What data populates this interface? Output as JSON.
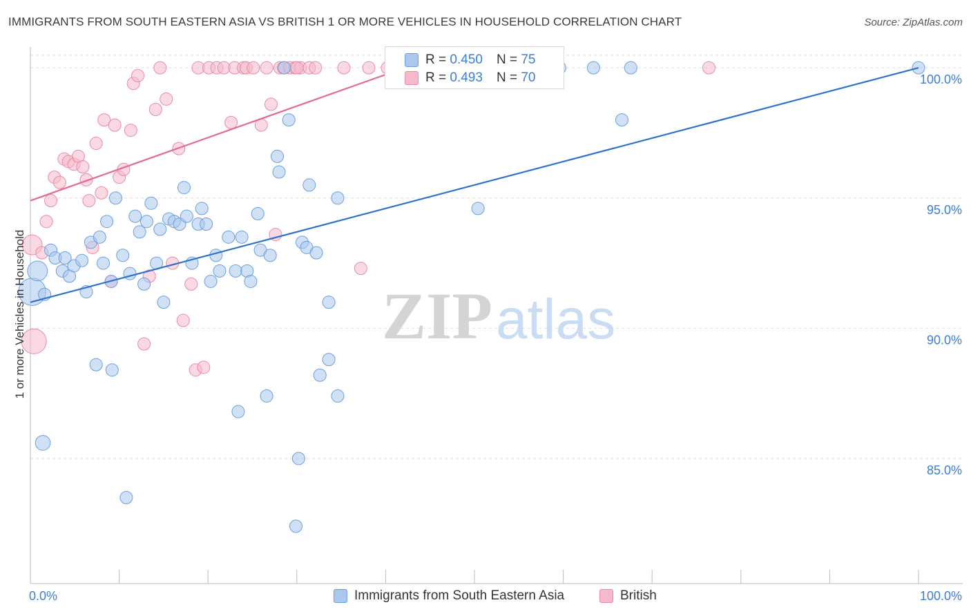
{
  "header": {
    "title": "IMMIGRANTS FROM SOUTH EASTERN ASIA VS BRITISH 1 OR MORE VEHICLES IN HOUSEHOLD CORRELATION CHART",
    "source": "Source: ZipAtlas.com"
  },
  "watermark": {
    "zip": "ZIP",
    "atlas": "atlas"
  },
  "colors": {
    "blue_fill": "#aac8ee",
    "blue_stroke": "#6a9fdc",
    "blue_line": "#2f72c9",
    "pink_fill": "#f5b9cb",
    "pink_stroke": "#e88aa8",
    "pink_line": "#e06a93",
    "tick_label": "#3b7dd8",
    "grid": "#dddddd"
  },
  "stats": {
    "blue": {
      "r_label": "R =",
      "r_value": "0.450",
      "n_label": "N =",
      "n_value": "75"
    },
    "pink": {
      "r_label": "R =",
      "r_value": "0.493",
      "n_label": "N =",
      "n_value": "70"
    }
  },
  "legend": {
    "blue_label": "Immigrants from South Eastern Asia",
    "pink_label": "British"
  },
  "chart_data": {
    "type": "scatter",
    "title": "IMMIGRANTS FROM SOUTH EASTERN ASIA VS BRITISH 1 OR MORE VEHICLES IN HOUSEHOLD CORRELATION CHART",
    "xlabel": "",
    "ylabel": "1 or more Vehicles in Household",
    "xlim": [
      0,
      100
    ],
    "ylim": [
      80.2,
      100.8
    ],
    "x_tick_labels": [
      "0.0%",
      "100.0%"
    ],
    "y_ticks": [
      85.0,
      90.0,
      95.0,
      100.0
    ],
    "y_tick_labels": [
      "85.0%",
      "90.0%",
      "95.0%",
      "100.0%"
    ],
    "grid": true,
    "series": [
      {
        "name": "Immigrants from South Eastern Asia",
        "color": "blue",
        "trend": {
          "x": [
            0,
            100
          ],
          "y": [
            91.0,
            100.0
          ]
        },
        "points": [
          [
            0.2,
            91.4,
            22
          ],
          [
            0.8,
            92.2,
            16
          ],
          [
            1.6,
            91.3,
            10
          ],
          [
            2.3,
            93.0,
            10
          ],
          [
            2.8,
            92.7,
            10
          ],
          [
            3.6,
            92.2,
            10
          ],
          [
            3.9,
            92.7,
            10
          ],
          [
            4.4,
            92.0,
            10
          ],
          [
            4.9,
            92.4,
            10
          ],
          [
            5.8,
            92.6,
            10
          ],
          [
            6.3,
            91.4,
            10
          ],
          [
            6.8,
            93.3,
            10
          ],
          [
            7.4,
            88.6,
            10
          ],
          [
            7.8,
            93.5,
            10
          ],
          [
            9.2,
            88.4,
            10
          ],
          [
            8.2,
            92.5,
            10
          ],
          [
            8.6,
            94.1,
            10
          ],
          [
            9.1,
            91.8,
            10
          ],
          [
            9.6,
            95.0,
            10
          ],
          [
            10.4,
            92.8,
            10
          ],
          [
            10.8,
            83.5,
            10
          ],
          [
            11.2,
            92.1,
            10
          ],
          [
            11.8,
            94.3,
            10
          ],
          [
            12.3,
            93.7,
            10
          ],
          [
            12.8,
            91.7,
            10
          ],
          [
            13.1,
            94.1,
            10
          ],
          [
            13.6,
            94.8,
            10
          ],
          [
            14.2,
            92.5,
            10
          ],
          [
            14.6,
            93.8,
            10
          ],
          [
            15.0,
            91.0,
            10
          ],
          [
            15.6,
            94.2,
            10
          ],
          [
            16.2,
            94.1,
            10
          ],
          [
            16.8,
            94.0,
            10
          ],
          [
            17.3,
            95.4,
            10
          ],
          [
            17.6,
            94.3,
            10
          ],
          [
            18.2,
            92.5,
            10
          ],
          [
            18.9,
            94.0,
            10
          ],
          [
            19.3,
            94.6,
            10
          ],
          [
            19.8,
            94.0,
            10
          ],
          [
            20.3,
            91.8,
            10
          ],
          [
            20.9,
            92.8,
            10
          ],
          [
            21.3,
            92.2,
            10
          ],
          [
            22.3,
            93.5,
            10
          ],
          [
            23.1,
            92.2,
            10
          ],
          [
            23.4,
            86.8,
            10
          ],
          [
            23.8,
            93.5,
            10
          ],
          [
            24.4,
            92.2,
            10
          ],
          [
            24.8,
            91.8,
            10
          ],
          [
            25.6,
            94.4,
            10
          ],
          [
            25.9,
            93.0,
            10
          ],
          [
            26.6,
            87.4,
            10
          ],
          [
            27.0,
            92.8,
            10
          ],
          [
            27.8,
            96.6,
            10
          ],
          [
            28.0,
            96.0,
            10
          ],
          [
            28.6,
            100.0,
            10
          ],
          [
            29.1,
            98.0,
            10
          ],
          [
            29.9,
            82.4,
            10
          ],
          [
            30.2,
            85.0,
            10
          ],
          [
            30.6,
            93.3,
            10
          ],
          [
            31.1,
            93.1,
            10
          ],
          [
            31.4,
            95.5,
            10
          ],
          [
            32.2,
            92.9,
            10
          ],
          [
            32.6,
            88.2,
            10
          ],
          [
            33.6,
            91.0,
            10
          ],
          [
            33.6,
            88.8,
            10
          ],
          [
            34.6,
            87.4,
            10
          ],
          [
            34.6,
            95.0,
            10
          ],
          [
            42.5,
            100.0,
            10
          ],
          [
            50.4,
            94.6,
            10
          ],
          [
            59.6,
            100.0,
            10
          ],
          [
            63.4,
            100.0,
            10
          ],
          [
            66.6,
            98.0,
            10
          ],
          [
            67.6,
            100.0,
            10
          ],
          [
            100.0,
            100.0,
            10
          ],
          [
            1.4,
            85.6,
            12
          ]
        ]
      },
      {
        "name": "British",
        "color": "pink",
        "trend": {
          "x": [
            0,
            100
          ],
          "y": [
            94.9,
            107.0
          ]
        },
        "points": [
          [
            0.2,
            93.2,
            16
          ],
          [
            0.4,
            89.5,
            20
          ],
          [
            1.3,
            92.9,
            10
          ],
          [
            1.8,
            94.1,
            10
          ],
          [
            2.3,
            94.9,
            10
          ],
          [
            2.7,
            95.8,
            10
          ],
          [
            3.3,
            95.6,
            10
          ],
          [
            3.8,
            96.5,
            10
          ],
          [
            4.3,
            96.4,
            10
          ],
          [
            4.9,
            96.3,
            10
          ],
          [
            5.4,
            96.6,
            10
          ],
          [
            5.9,
            96.2,
            10
          ],
          [
            6.3,
            95.7,
            10
          ],
          [
            6.6,
            94.9,
            10
          ],
          [
            7.0,
            93.1,
            10
          ],
          [
            7.4,
            97.1,
            10
          ],
          [
            8.0,
            95.2,
            10
          ],
          [
            8.3,
            98.0,
            10
          ],
          [
            9.1,
            91.8,
            10
          ],
          [
            9.5,
            97.8,
            10
          ],
          [
            10.0,
            95.8,
            10
          ],
          [
            10.5,
            96.1,
            10
          ],
          [
            11.3,
            97.6,
            10
          ],
          [
            11.6,
            99.4,
            10
          ],
          [
            12.1,
            99.7,
            10
          ],
          [
            12.8,
            89.4,
            10
          ],
          [
            13.4,
            92.0,
            10
          ],
          [
            14.1,
            98.4,
            10
          ],
          [
            14.6,
            100.0,
            10
          ],
          [
            15.3,
            98.8,
            10
          ],
          [
            16.0,
            92.5,
            10
          ],
          [
            16.7,
            96.9,
            10
          ],
          [
            17.2,
            90.3,
            10
          ],
          [
            18.1,
            91.7,
            10
          ],
          [
            18.6,
            88.4,
            10
          ],
          [
            18.9,
            100.0,
            10
          ],
          [
            19.5,
            88.5,
            10
          ],
          [
            20.1,
            100.0,
            10
          ],
          [
            21.0,
            100.0,
            10
          ],
          [
            21.8,
            100.0,
            10
          ],
          [
            22.6,
            97.9,
            10
          ],
          [
            23.0,
            100.0,
            10
          ],
          [
            24.0,
            100.0,
            10
          ],
          [
            24.3,
            100.0,
            10
          ],
          [
            25.1,
            100.0,
            10
          ],
          [
            26.0,
            97.8,
            10
          ],
          [
            27.1,
            98.6,
            10
          ],
          [
            27.6,
            93.6,
            10
          ],
          [
            28.1,
            100.0,
            10
          ],
          [
            28.5,
            100.0,
            10
          ],
          [
            29.2,
            100.0,
            10
          ],
          [
            29.8,
            100.0,
            10
          ],
          [
            30.4,
            100.0,
            10
          ],
          [
            31.4,
            100.0,
            10
          ],
          [
            32.1,
            100.0,
            10
          ],
          [
            35.3,
            100.0,
            10
          ],
          [
            37.2,
            92.3,
            10
          ],
          [
            38.1,
            100.0,
            10
          ],
          [
            40.2,
            100.0,
            10
          ],
          [
            40.9,
            100.0,
            10
          ],
          [
            42.2,
            100.0,
            10
          ],
          [
            43.4,
            100.0,
            10
          ],
          [
            44.9,
            100.0,
            10
          ],
          [
            47.0,
            100.0,
            10
          ],
          [
            48.6,
            100.0,
            10
          ],
          [
            49.4,
            100.0,
            10
          ],
          [
            50.5,
            100.0,
            10
          ],
          [
            76.4,
            100.0,
            10
          ],
          [
            26.6,
            100.0,
            10
          ],
          [
            30.0,
            100.0,
            10
          ]
        ]
      }
    ]
  }
}
